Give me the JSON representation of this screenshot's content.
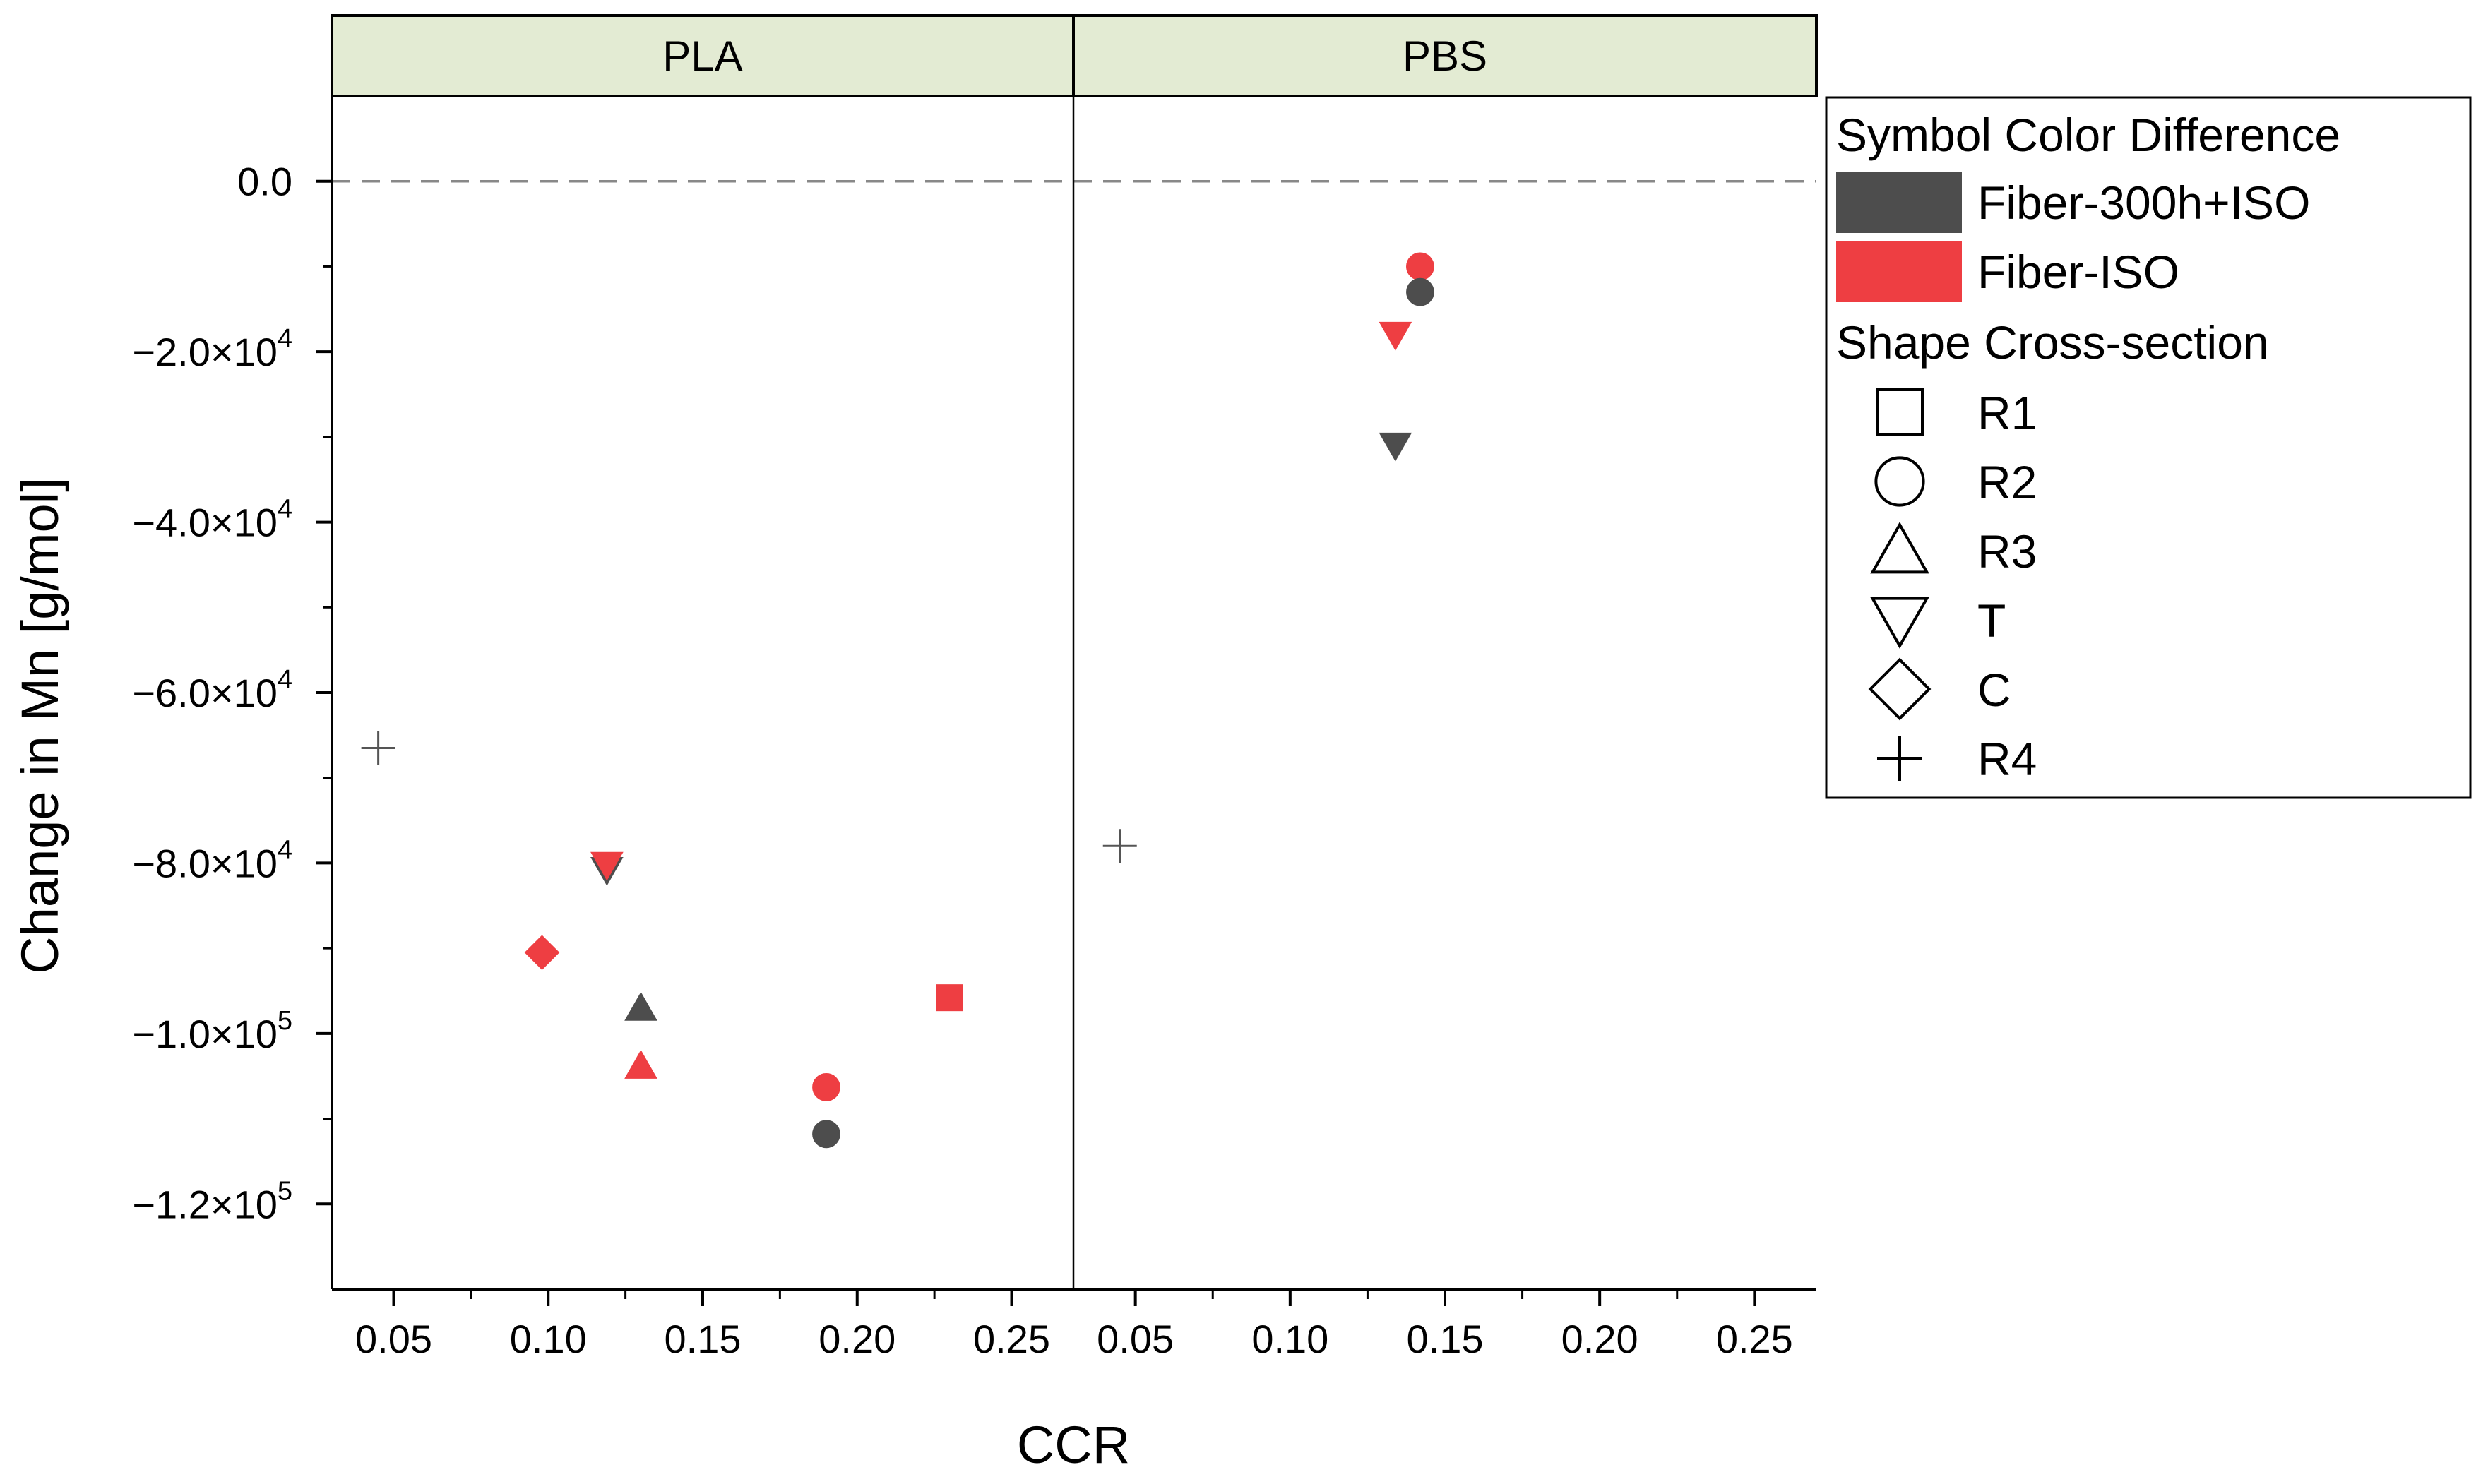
{
  "chart_data": {
    "type": "scatter",
    "xlabel": "CCR",
    "ylabel": "Change in Mn [g/mol]",
    "xlim": [
      0.03,
      0.27
    ],
    "ylim": [
      -130000,
      10000
    ],
    "x_ticks": [
      0.05,
      0.1,
      0.15,
      0.2,
      0.25
    ],
    "x_tick_labels": [
      "0.05",
      "0.10",
      "0.15",
      "0.20",
      "0.25"
    ],
    "y_ticks": [
      0,
      -20000,
      -40000,
      -60000,
      -80000,
      -100000,
      -120000
    ],
    "y_tick_labels": [
      {
        "base": "0.0",
        "exp": ""
      },
      {
        "base": "−2.0×10",
        "exp": "4"
      },
      {
        "base": "−4.0×10",
        "exp": "4"
      },
      {
        "base": "−6.0×10",
        "exp": "4"
      },
      {
        "base": "−8.0×10",
        "exp": "4"
      },
      {
        "base": "−1.0×10",
        "exp": "5"
      },
      {
        "base": "−1.2×10",
        "exp": "5"
      }
    ],
    "reference_line": 0,
    "panels": [
      {
        "title": "PLA",
        "points": [
          {
            "x": 0.045,
            "y": -66500,
            "shape": "R4",
            "color": "none"
          },
          {
            "x": 0.098,
            "y": -90500,
            "shape": "C",
            "color": "Fiber-ISO"
          },
          {
            "x": 0.119,
            "y": -80800,
            "shape": "T",
            "color": "Fiber-300h+ISO"
          },
          {
            "x": 0.119,
            "y": -80200,
            "shape": "T",
            "color": "Fiber-ISO"
          },
          {
            "x": 0.13,
            "y": -97000,
            "shape": "R3",
            "color": "Fiber-300h+ISO"
          },
          {
            "x": 0.13,
            "y": -103800,
            "shape": "R3",
            "color": "Fiber-ISO"
          },
          {
            "x": 0.19,
            "y": -106300,
            "shape": "R2",
            "color": "Fiber-ISO"
          },
          {
            "x": 0.19,
            "y": -111800,
            "shape": "R2",
            "color": "Fiber-300h+ISO"
          },
          {
            "x": 0.23,
            "y": -95800,
            "shape": "R1",
            "color": "Fiber-ISO"
          }
        ]
      },
      {
        "title": "PBS",
        "points": [
          {
            "x": 0.045,
            "y": -78000,
            "shape": "R4",
            "color": "none"
          },
          {
            "x": 0.134,
            "y": -18000,
            "shape": "T",
            "color": "Fiber-ISO"
          },
          {
            "x": 0.134,
            "y": -31000,
            "shape": "T",
            "color": "Fiber-300h+ISO"
          },
          {
            "x": 0.142,
            "y": -10000,
            "shape": "R2",
            "color": "Fiber-ISO"
          },
          {
            "x": 0.142,
            "y": -13000,
            "shape": "R2",
            "color": "Fiber-300h+ISO"
          }
        ]
      }
    ],
    "legend": {
      "position": "right",
      "color_header": "Symbol Color  Difference",
      "colors": [
        {
          "label": "Fiber-300h+ISO",
          "color": "#4d4d4d"
        },
        {
          "label": "Fiber-ISO",
          "color": "#ee3e42"
        }
      ],
      "shape_header": "Shape  Cross-section",
      "shapes": [
        {
          "label": "R1",
          "shape": "R1"
        },
        {
          "label": "R2",
          "shape": "R2"
        },
        {
          "label": "R3",
          "shape": "R3"
        },
        {
          "label": "T",
          "shape": "T"
        },
        {
          "label": "C",
          "shape": "C"
        },
        {
          "label": "R4",
          "shape": "R4"
        }
      ]
    },
    "colors": {
      "Fiber-300h+ISO": "#4d4d4d",
      "Fiber-ISO": "#ee3e42",
      "panel_header": "#e3ebd3",
      "reference_line": "#888888"
    }
  }
}
